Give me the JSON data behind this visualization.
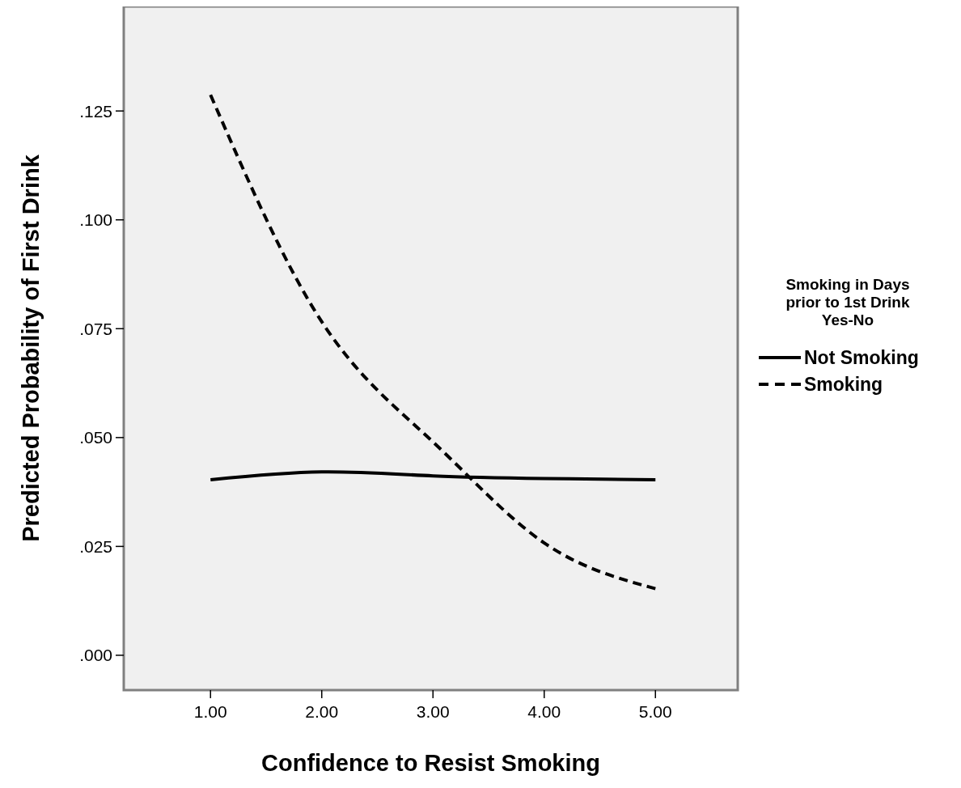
{
  "chart_data": {
    "type": "line",
    "xlabel": "Confidence to Resist Smoking",
    "ylabel": "Predicted Probability of First Drink",
    "legend_title": "Smoking in Days prior to 1st Drink Yes-No",
    "x": [
      1,
      2,
      3,
      4,
      5
    ],
    "xlim": [
      0.22,
      5.74
    ],
    "xticks": [
      {
        "value": 1,
        "label": "1.00"
      },
      {
        "value": 2,
        "label": "2.00"
      },
      {
        "value": 3,
        "label": "3.00"
      },
      {
        "value": 4,
        "label": "4.00"
      },
      {
        "value": 5,
        "label": "5.00"
      }
    ],
    "ylim": [
      -0.008,
      0.149
    ],
    "yticks": [
      {
        "value": 0,
        "label": ".000"
      },
      {
        "value": 0.025,
        "label": ".025"
      },
      {
        "value": 0.05,
        "label": ".050"
      },
      {
        "value": 0.075,
        "label": ".075"
      },
      {
        "value": 0.1,
        "label": ".100"
      },
      {
        "value": 0.125,
        "label": ".125"
      }
    ],
    "series": [
      {
        "name": "Not Smoking",
        "color": "#000000",
        "line_style": "solid",
        "values": [
          0.0403,
          0.0421,
          0.0412,
          0.0406,
          0.0403
        ]
      },
      {
        "name": "Smoking",
        "color": "#000000",
        "line_style": "dashed",
        "values": [
          0.1287,
          0.0766,
          0.049,
          0.0258,
          0.0153
        ]
      }
    ],
    "grid": false,
    "legend": "right",
    "marker": "none"
  }
}
